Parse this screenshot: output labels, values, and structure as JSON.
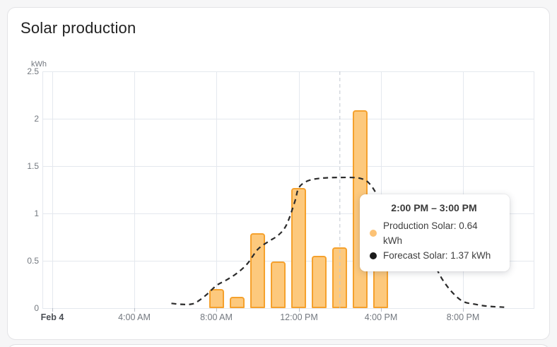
{
  "card": {
    "title": "Solar production"
  },
  "chart_data": {
    "type": "bar",
    "title": "Solar production",
    "xlabel": "",
    "ylabel": "kWh",
    "ylim": [
      0,
      2.5
    ],
    "grid": true,
    "legend_position": "none",
    "date_label": "Feb 4",
    "y_ticks": [
      0,
      0.5,
      1,
      1.5,
      2,
      2.5
    ],
    "x_ticks": [
      {
        "hour": 0,
        "label": "Feb 4",
        "emphasis": true
      },
      {
        "hour": 4,
        "label": "4:00 AM"
      },
      {
        "hour": 8,
        "label": "8:00 AM"
      },
      {
        "hour": 12,
        "label": "12:00 PM"
      },
      {
        "hour": 16,
        "label": "4:00 PM"
      },
      {
        "hour": 20,
        "label": "8:00 PM"
      }
    ],
    "series": [
      {
        "name": "Production Solar",
        "type": "bar",
        "unit": "kWh",
        "points": [
          {
            "hour": 8,
            "value": 0.2
          },
          {
            "hour": 9,
            "value": 0.12
          },
          {
            "hour": 10,
            "value": 0.79
          },
          {
            "hour": 11,
            "value": 0.49
          },
          {
            "hour": 12,
            "value": 1.27
          },
          {
            "hour": 13,
            "value": 0.55
          },
          {
            "hour": 14,
            "value": 0.64
          },
          {
            "hour": 15,
            "value": 2.09
          },
          {
            "hour": 16,
            "value": 0.57
          }
        ]
      },
      {
        "name": "Forecast Solar",
        "type": "line",
        "dashed": true,
        "unit": "kWh",
        "points": [
          [
            5.8,
            0.05
          ],
          [
            6.3,
            0.04
          ],
          [
            6.7,
            0.04
          ],
          [
            7.0,
            0.06
          ],
          [
            7.5,
            0.14
          ],
          [
            8.0,
            0.24
          ],
          [
            8.5,
            0.3
          ],
          [
            9.0,
            0.37
          ],
          [
            9.5,
            0.47
          ],
          [
            10.0,
            0.62
          ],
          [
            10.5,
            0.7
          ],
          [
            11.0,
            0.77
          ],
          [
            11.4,
            0.88
          ],
          [
            11.8,
            1.12
          ],
          [
            12.0,
            1.27
          ],
          [
            12.4,
            1.34
          ],
          [
            13.0,
            1.37
          ],
          [
            14.0,
            1.38
          ],
          [
            15.0,
            1.37
          ],
          [
            15.5,
            1.3
          ],
          [
            16.0,
            1.12
          ],
          [
            16.5,
            0.93
          ],
          [
            17.0,
            0.77
          ],
          [
            17.6,
            0.63
          ],
          [
            18.3,
            0.56
          ],
          [
            19.0,
            0.3
          ],
          [
            19.5,
            0.16
          ],
          [
            20.0,
            0.07
          ],
          [
            20.6,
            0.04
          ],
          [
            21.2,
            0.02
          ],
          [
            22.0,
            0.01
          ]
        ]
      }
    ],
    "cursor_hour": 14
  },
  "tooltip": {
    "title": "2:00 PM – 3:00 PM",
    "items": [
      {
        "series": "Production Solar",
        "label": "Production Solar: 0.64 kWh",
        "dot_color": "#fcc275"
      },
      {
        "series": "Forecast Solar",
        "label": "Forecast Solar: 1.37 kWh",
        "dot_color": "#1b1b1b"
      }
    ]
  },
  "colors": {
    "bar_fill": "#fdc97d",
    "bar_stroke": "#f5a12d",
    "forecast_line": "#2b2b2b",
    "grid": "#e4e8ee",
    "axis_text": "#73787f",
    "axis_text_emphasis": "#4a4e54",
    "tick_mark": "#b9bfc7",
    "cursor": "#c2c7d0",
    "title_text": "#212121",
    "page_bg": "#f6f6f7"
  }
}
